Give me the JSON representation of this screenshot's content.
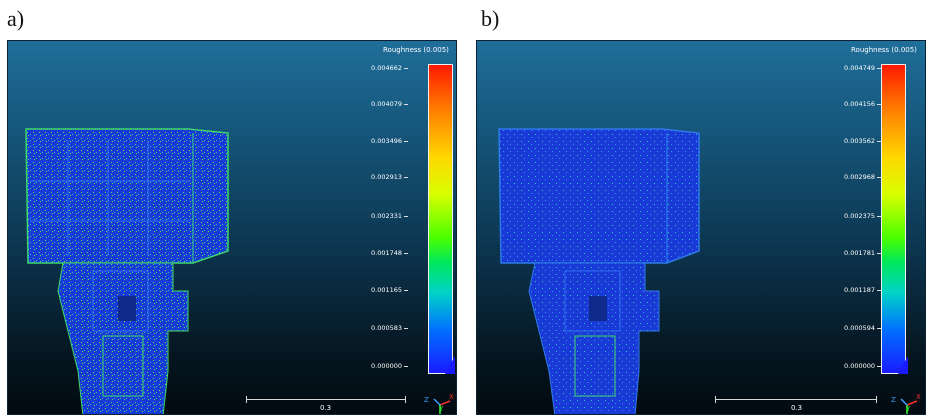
{
  "panels": [
    {
      "letter": "a)",
      "scalar_field": {
        "title": "Roughness (0.005)",
        "ticks": [
          "0.004662",
          "0.004079",
          "0.003496",
          "0.002913",
          "0.002331",
          "0.001748",
          "0.001165",
          "0.000583",
          "0.000000"
        ]
      },
      "scale_bar": {
        "label": "0.3"
      },
      "axes": {
        "x": "X",
        "y": "Y",
        "z": "Z"
      }
    },
    {
      "letter": "b)",
      "scalar_field": {
        "title": "Roughness (0.005)",
        "ticks": [
          "0.004749",
          "0.004156",
          "0.003562",
          "0.002968",
          "0.002375",
          "0.001781",
          "0.001187",
          "0.000594",
          "0.000000"
        ]
      },
      "scale_bar": {
        "label": "0.3"
      },
      "axes": {
        "x": "X",
        "y": "Y",
        "z": "Z"
      }
    }
  ],
  "colors": {
    "background_top": "#1f6e9a",
    "background_bottom": "#020a10",
    "point_cloud": "#1a3ad8",
    "rough_points": "#3fe35a",
    "colormap": [
      "#1a1aff",
      "#00d2c8",
      "#4cff00",
      "#ffd800",
      "#ff1a00"
    ]
  }
}
